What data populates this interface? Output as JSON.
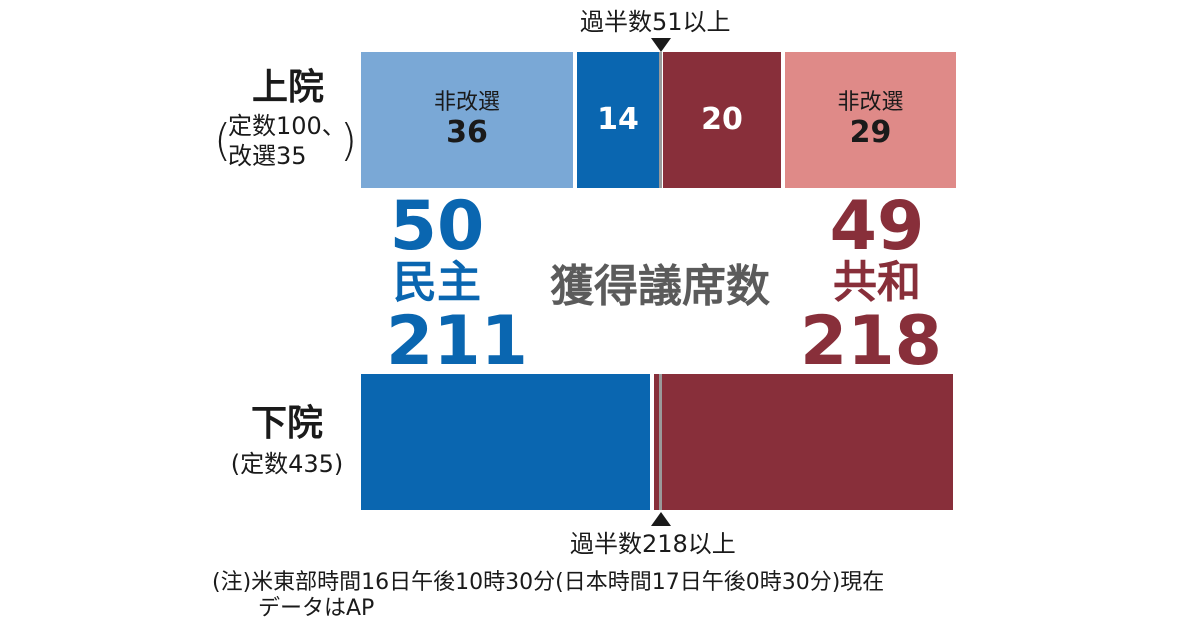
{
  "colors": {
    "dem_dark": "#0a66b0",
    "dem_light": "#7aa8d6",
    "rep_dark": "#882f3a",
    "rep_light": "#df8a88",
    "majority_line": "#9a9a9a",
    "center_text": "#5b5b5b"
  },
  "center_title": "獲得議席数",
  "parties": {
    "dem": {
      "name": "民主",
      "senate_total": "50",
      "house_total": "211"
    },
    "rep": {
      "name": "共和",
      "senate_total": "49",
      "house_total": "218"
    }
  },
  "senate": {
    "title": "上院",
    "sub_open": "(",
    "sub_line1": "定数100、",
    "sub_line2": "改選35",
    "sub_close": ")",
    "majority_label": "過半数51以上"
  },
  "house": {
    "title": "下院",
    "sub": "(定数435)",
    "majority_label": "過半数218以上"
  },
  "note": {
    "line1": "(注)米東部時間16日午後10時30分(日本時間17日午後0時30分)現在",
    "line2": "データはAP"
  },
  "chart_data": {
    "type": "bar",
    "categories": [
      "上院",
      "下院"
    ],
    "senate": {
      "total": 100,
      "majority": 51,
      "segments": [
        {
          "party": "民主",
          "label": "非改選",
          "value": 36,
          "color": "#7aa8d6"
        },
        {
          "party": "民主",
          "label": "",
          "value": 14,
          "color": "#0a66b0"
        },
        {
          "party": "共和",
          "label": "",
          "value": 20,
          "color": "#882f3a"
        },
        {
          "party": "共和",
          "label": "非改選",
          "value": 29,
          "color": "#df8a88"
        }
      ]
    },
    "house": {
      "total": 435,
      "majority": 218,
      "segments": [
        {
          "party": "民主",
          "value": 211,
          "color": "#0a66b0"
        },
        {
          "party": "共和",
          "value": 218,
          "color": "#882f3a"
        }
      ]
    }
  }
}
